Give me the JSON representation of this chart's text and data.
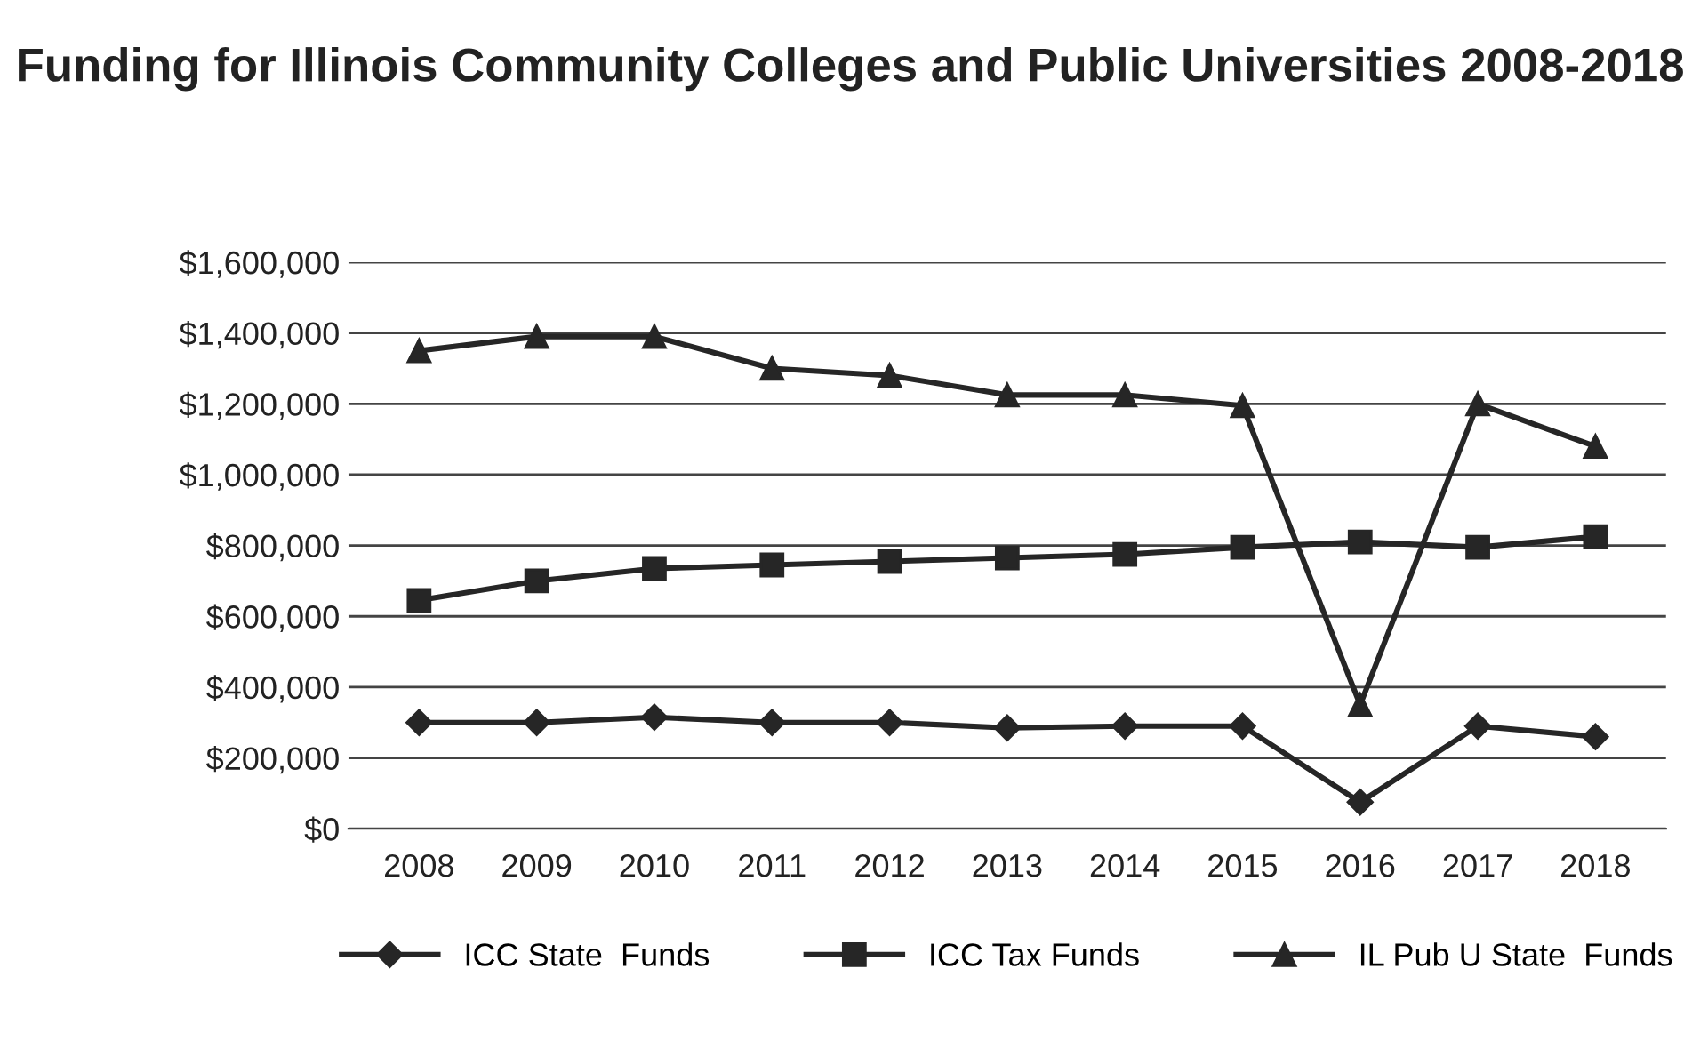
{
  "chart_data": {
    "type": "line",
    "title": "Funding for Illinois Community Colleges and Public Universities 2008-2018",
    "categories": [
      "2008",
      "2009",
      "2010",
      "2011",
      "2012",
      "2013",
      "2014",
      "2015",
      "2016",
      "2017",
      "2018"
    ],
    "series": [
      {
        "name": "ICC State  Funds",
        "color": "#262626",
        "marker": "diamond",
        "values": [
          300000,
          300000,
          315000,
          300000,
          300000,
          285000,
          290000,
          290000,
          75000,
          290000,
          260000
        ]
      },
      {
        "name": "ICC Tax Funds",
        "color": "#262626",
        "marker": "square",
        "values": [
          645000,
          700000,
          735000,
          745000,
          755000,
          765000,
          775000,
          795000,
          810000,
          795000,
          825000
        ]
      },
      {
        "name": "IL Pub U State  Funds",
        "color": "#262626",
        "marker": "triangle",
        "values": [
          1350000,
          1390000,
          1390000,
          1300000,
          1280000,
          1225000,
          1225000,
          1195000,
          350000,
          1200000,
          1080000
        ]
      }
    ],
    "ylim": [
      0,
      1600000
    ],
    "yticks": [
      {
        "value": 0,
        "label": "$0"
      },
      {
        "value": 200000,
        "label": "$200,000"
      },
      {
        "value": 400000,
        "label": "$400,000"
      },
      {
        "value": 600000,
        "label": "$600,000"
      },
      {
        "value": 800000,
        "label": "$800,000"
      },
      {
        "value": 1000000,
        "label": "$1,000,000"
      },
      {
        "value": 1200000,
        "label": "$1,200,000"
      },
      {
        "value": 1400000,
        "label": "$1,400,000"
      },
      {
        "value": 1600000,
        "label": "$1,600,000"
      }
    ],
    "grid": "y",
    "legend": "bottom",
    "line_style": "solid"
  }
}
